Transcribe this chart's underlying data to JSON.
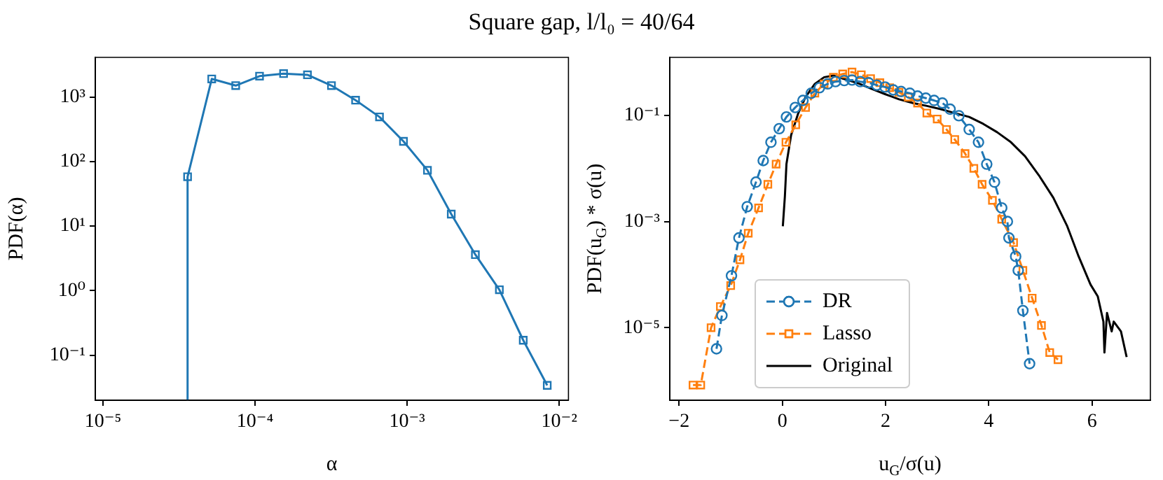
{
  "chart_data": [
    {
      "type": "line",
      "title": "Square gap, l/l₀ = 40/64",
      "xlabel": "α",
      "ylabel": "PDF(α)",
      "log": "xy",
      "grid": false,
      "legend": false,
      "marker": "square",
      "line_style": "solid",
      "x": [
        3.6e-05,
        3.6e-05,
        5.19e-05,
        7.46e-05,
        0.000107,
        0.000154,
        0.000221,
        0.000318,
        0.000458,
        0.000658,
        0.000946,
        0.00136,
        0.00195,
        0.00281,
        0.00404,
        0.0058,
        0.00834
      ],
      "series": [
        {
          "color": "#1f77b4",
          "values": [
            0.02,
            58,
            1900,
            1500,
            2100,
            2300,
            2200,
            1500,
            890,
            490,
            205,
            73,
            15.3,
            3.6,
            1.03,
            0.17,
            0.034
          ]
        }
      ],
      "xlim": [
        8.9e-06,
        0.0115
      ],
      "ylim": [
        0.02,
        4100
      ],
      "xticks": [
        {
          "value": 1e-05,
          "label": "10⁻⁵"
        },
        {
          "value": 0.0001,
          "label": "10⁻⁴"
        },
        {
          "value": 0.001,
          "label": "10⁻³"
        },
        {
          "value": 0.01,
          "label": "10⁻²"
        }
      ],
      "yticks": [
        {
          "value": 0.1,
          "label": "10⁻¹"
        },
        {
          "value": 1,
          "label": "10⁰"
        },
        {
          "value": 10,
          "label": "10¹"
        },
        {
          "value": 100,
          "label": "10²"
        },
        {
          "value": 1000,
          "label": "10³"
        }
      ]
    },
    {
      "type": "line",
      "xlabel": "u$_{G}$/σ(u)",
      "ylabel": "PDF(u$_{G}$) * σ(u)",
      "log": "y",
      "grid": false,
      "legend": "bottom left",
      "series": [
        {
          "name": "DR",
          "color": "#1f77b4",
          "marker": "circle",
          "line_style": "dashed",
          "x": [
            -1.275,
            -1.17,
            -0.985,
            -0.84,
            -0.68,
            -0.51,
            -0.37,
            -0.22,
            -0.06,
            0.08,
            0.25,
            0.4,
            0.56,
            0.72,
            0.88,
            1.03,
            1.2,
            1.35,
            1.51,
            1.67,
            1.83,
            1.99,
            2.15,
            2.3,
            2.47,
            2.62,
            2.78,
            2.94,
            3.1,
            3.25,
            3.42,
            3.62,
            3.8,
            3.96,
            4.11,
            4.25,
            4.36,
            4.39,
            4.52,
            4.57,
            4.66,
            4.79
          ],
          "values": [
            4e-06,
            1.7e-05,
            9.5e-05,
            0.00049,
            0.0019,
            0.0055,
            0.014,
            0.031,
            0.056,
            0.093,
            0.14,
            0.19,
            0.26,
            0.33,
            0.39,
            0.43,
            0.45,
            0.46,
            0.43,
            0.41,
            0.37,
            0.34,
            0.3,
            0.28,
            0.26,
            0.23,
            0.21,
            0.19,
            0.17,
            0.13,
            0.098,
            0.054,
            0.031,
            0.012,
            0.0055,
            0.0018,
            0.001,
            0.00049,
            0.00022,
            0.00012,
            2.1e-05,
            2.1e-06
          ]
        },
        {
          "name": "Lasso",
          "color": "#ff7f0e",
          "marker": "square",
          "line_style": "dashed",
          "x": [
            -1.73,
            -1.58,
            -1.38,
            -1.2,
            -1.0,
            -0.82,
            -0.66,
            -0.46,
            -0.28,
            -0.12,
            0.07,
            0.26,
            0.45,
            0.63,
            0.81,
            0.99,
            1.17,
            1.35,
            1.53,
            1.71,
            1.89,
            2.08,
            2.26,
            2.44,
            2.62,
            2.8,
            3.0,
            3.18,
            3.34,
            3.54,
            3.71,
            3.87,
            4.07,
            4.25,
            4.48,
            4.66,
            4.84,
            5.02,
            5.18,
            5.34
          ],
          "values": [
            8.3e-07,
            8.3e-07,
            1e-05,
            2.5e-05,
            6.2e-05,
            0.00019,
            0.0006,
            0.0018,
            0.005,
            0.012,
            0.031,
            0.066,
            0.14,
            0.26,
            0.39,
            0.52,
            0.6,
            0.65,
            0.58,
            0.49,
            0.41,
            0.33,
            0.27,
            0.22,
            0.17,
            0.11,
            0.085,
            0.054,
            0.035,
            0.019,
            0.01,
            0.005,
            0.0025,
            0.0011,
            0.0004,
            0.00012,
            3.6e-05,
            1.1e-05,
            3.4e-06,
            2.5e-06
          ]
        },
        {
          "name": "Original",
          "color": "#000000",
          "marker": "none",
          "line_style": "solid",
          "x": [
            0.01,
            0.05,
            0.08,
            0.17,
            0.31,
            0.45,
            0.63,
            0.81,
            0.99,
            1.17,
            1.44,
            1.71,
            1.99,
            2.26,
            2.53,
            2.8,
            3.07,
            3.34,
            3.62,
            3.89,
            4.16,
            4.43,
            4.7,
            4.97,
            5.25,
            5.52,
            5.74,
            5.97,
            6.11,
            6.22,
            6.24,
            6.29,
            6.38,
            6.42,
            6.56,
            6.67
          ],
          "values": [
            0.00081,
            0.003,
            0.012,
            0.042,
            0.11,
            0.22,
            0.39,
            0.52,
            0.56,
            0.49,
            0.41,
            0.32,
            0.25,
            0.2,
            0.17,
            0.15,
            0.13,
            0.11,
            0.093,
            0.069,
            0.048,
            0.031,
            0.017,
            0.0074,
            0.0028,
            0.00081,
            0.00022,
            6.5e-05,
            3.9e-05,
            1.3e-05,
            3.4e-06,
            1.9e-05,
            8.5e-06,
            1.3e-05,
            8.5e-06,
            2.8e-06
          ]
        }
      ],
      "xlim": [
        -2.18,
        7.13
      ],
      "ylim": [
        4.3e-07,
        1.23
      ],
      "xticks": [
        {
          "value": -2,
          "label": "−2"
        },
        0,
        2,
        4,
        6
      ],
      "yticks": [
        {
          "value": 1e-05,
          "label": "10⁻⁵"
        },
        {
          "value": 0.001,
          "label": "10⁻³"
        },
        {
          "value": 0.1,
          "label": "10⁻¹"
        }
      ]
    }
  ]
}
